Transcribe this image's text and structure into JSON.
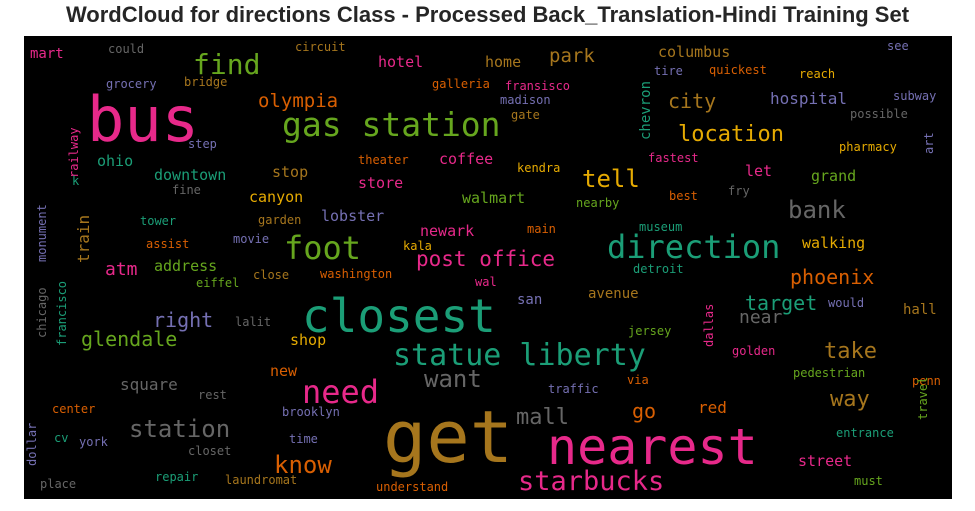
{
  "chart_data": {
    "type": "wordcloud",
    "title": "WordCloud for directions Class - Processed Back_Translation-Hindi Training Set",
    "background": "#000000",
    "palette": [
      "#1b9e77",
      "#d95f02",
      "#7570b3",
      "#e7298a",
      "#66a61e",
      "#e6ab02",
      "#a6761d",
      "#666666"
    ],
    "words": [
      {
        "text": "get",
        "weight": 1.0,
        "color": "#a6761d"
      },
      {
        "text": "nearest",
        "weight": 0.96,
        "color": "#e7298a"
      },
      {
        "text": "closest",
        "weight": 0.91,
        "color": "#1b9e77"
      },
      {
        "text": "bus",
        "weight": 0.89,
        "color": "#e7298a"
      },
      {
        "text": "gas station",
        "weight": 0.6,
        "color": "#66a61e"
      },
      {
        "text": "direction",
        "weight": 0.58,
        "color": "#1b9e77"
      },
      {
        "text": "statue liberty",
        "weight": 0.56,
        "color": "#1b9e77"
      },
      {
        "text": "foot",
        "weight": 0.55,
        "color": "#66a61e"
      },
      {
        "text": "need",
        "weight": 0.52,
        "color": "#e7298a"
      },
      {
        "text": "starbucks",
        "weight": 0.48,
        "color": "#e7298a"
      },
      {
        "text": "find",
        "weight": 0.46,
        "color": "#66a61e"
      },
      {
        "text": "want",
        "weight": 0.44,
        "color": "#666666"
      },
      {
        "text": "bank",
        "weight": 0.44,
        "color": "#666666"
      },
      {
        "text": "station",
        "weight": 0.42,
        "color": "#666666"
      },
      {
        "text": "know",
        "weight": 0.41,
        "color": "#d95f02"
      },
      {
        "text": "tell",
        "weight": 0.4,
        "color": "#e6ab02"
      },
      {
        "text": "location",
        "weight": 0.38,
        "color": "#e6ab02"
      },
      {
        "text": "mall",
        "weight": 0.36,
        "color": "#666666"
      },
      {
        "text": "way",
        "weight": 0.36,
        "color": "#a6761d"
      },
      {
        "text": "take",
        "weight": 0.35,
        "color": "#a6761d"
      },
      {
        "text": "post office",
        "weight": 0.35,
        "color": "#e7298a"
      },
      {
        "text": "target",
        "weight": 0.33,
        "color": "#1b9e77"
      },
      {
        "text": "phoenix",
        "weight": 0.33,
        "color": "#d95f02"
      },
      {
        "text": "city",
        "weight": 0.33,
        "color": "#a6761d"
      },
      {
        "text": "right",
        "weight": 0.32,
        "color": "#7570b3"
      },
      {
        "text": "glendale",
        "weight": 0.32,
        "color": "#66a61e"
      },
      {
        "text": "olympia",
        "weight": 0.32,
        "color": "#d95f02"
      },
      {
        "text": "go",
        "weight": 0.32,
        "color": "#d95f02"
      },
      {
        "text": "park",
        "weight": 0.3,
        "color": "#a6761d"
      },
      {
        "text": "near",
        "weight": 0.3,
        "color": "#666666"
      },
      {
        "text": "atm",
        "weight": 0.28,
        "color": "#e7298a"
      },
      {
        "text": "red",
        "weight": 0.27,
        "color": "#d95f02"
      },
      {
        "text": "hospital",
        "weight": 0.26,
        "color": "#7570b3"
      },
      {
        "text": "columbus",
        "weight": 0.25,
        "color": "#a6761d"
      },
      {
        "text": "square",
        "weight": 0.25,
        "color": "#666666"
      },
      {
        "text": "home",
        "weight": 0.24,
        "color": "#a6761d"
      },
      {
        "text": "hotel",
        "weight": 0.24,
        "color": "#e7298a"
      },
      {
        "text": "coffee",
        "weight": 0.24,
        "color": "#e7298a"
      },
      {
        "text": "walmart",
        "weight": 0.24,
        "color": "#66a61e"
      },
      {
        "text": "street",
        "weight": 0.24,
        "color": "#e7298a"
      },
      {
        "text": "walking",
        "weight": 0.23,
        "color": "#e6ab02"
      },
      {
        "text": "grand",
        "weight": 0.22,
        "color": "#66a61e"
      },
      {
        "text": "newark",
        "weight": 0.22,
        "color": "#e7298a"
      },
      {
        "text": "downtown",
        "weight": 0.23,
        "color": "#1b9e77"
      },
      {
        "text": "canyon",
        "weight": 0.23,
        "color": "#e6ab02"
      },
      {
        "text": "ohio",
        "weight": 0.22,
        "color": "#1b9e77"
      },
      {
        "text": "stop",
        "weight": 0.22,
        "color": "#a6761d"
      },
      {
        "text": "store",
        "weight": 0.22,
        "color": "#e7298a"
      },
      {
        "text": "lobster",
        "weight": 0.22,
        "color": "#7570b3"
      },
      {
        "text": "address",
        "weight": 0.22,
        "color": "#66a61e"
      },
      {
        "text": "shop",
        "weight": 0.21,
        "color": "#e6ab02"
      },
      {
        "text": "avenue",
        "weight": 0.21,
        "color": "#a6761d"
      },
      {
        "text": "san",
        "weight": 0.2,
        "color": "#7570b3"
      },
      {
        "text": "hall",
        "weight": 0.21,
        "color": "#a6761d"
      },
      {
        "text": "let",
        "weight": 0.21,
        "color": "#e7298a"
      },
      {
        "text": "new",
        "weight": 0.21,
        "color": "#d95f02"
      },
      {
        "text": "train",
        "weight": 0.2,
        "color": "#a6761d"
      },
      {
        "text": "chevron",
        "weight": 0.19,
        "color": "#1b9e77"
      },
      {
        "text": "mart",
        "weight": 0.18,
        "color": "#e7298a"
      },
      {
        "text": "could",
        "weight": 0.16,
        "color": "#666666"
      },
      {
        "text": "circuit",
        "weight": 0.15,
        "color": "#a6761d"
      },
      {
        "text": "see",
        "weight": 0.14,
        "color": "#7570b3"
      },
      {
        "text": "grocery",
        "weight": 0.16,
        "color": "#7570b3"
      },
      {
        "text": "bridge",
        "weight": 0.16,
        "color": "#a6761d"
      },
      {
        "text": "galleria",
        "weight": 0.16,
        "color": "#d95f02"
      },
      {
        "text": "fransisco",
        "weight": 0.16,
        "color": "#e7298a"
      },
      {
        "text": "madison",
        "weight": 0.16,
        "color": "#7570b3"
      },
      {
        "text": "gate",
        "weight": 0.15,
        "color": "#a6761d"
      },
      {
        "text": "tire",
        "weight": 0.16,
        "color": "#7570b3"
      },
      {
        "text": "quickest",
        "weight": 0.16,
        "color": "#d95f02"
      },
      {
        "text": "reach",
        "weight": 0.16,
        "color": "#e6ab02"
      },
      {
        "text": "subway",
        "weight": 0.16,
        "color": "#7570b3"
      },
      {
        "text": "possible",
        "weight": 0.16,
        "color": "#666666"
      },
      {
        "text": "step",
        "weight": 0.16,
        "color": "#7570b3"
      },
      {
        "text": "railway",
        "weight": 0.16,
        "color": "#e7298a"
      },
      {
        "text": "k",
        "weight": 0.14,
        "color": "#1b9e77"
      },
      {
        "text": "theater",
        "weight": 0.16,
        "color": "#d95f02"
      },
      {
        "text": "kendra",
        "weight": 0.16,
        "color": "#e6ab02"
      },
      {
        "text": "fastest",
        "weight": 0.16,
        "color": "#e7298a"
      },
      {
        "text": "pharmacy",
        "weight": 0.16,
        "color": "#e6ab02"
      },
      {
        "text": "art",
        "weight": 0.15,
        "color": "#7570b3"
      },
      {
        "text": "fine",
        "weight": 0.15,
        "color": "#666666"
      },
      {
        "text": "best",
        "weight": 0.16,
        "color": "#d95f02"
      },
      {
        "text": "fry",
        "weight": 0.15,
        "color": "#666666"
      },
      {
        "text": "nearby",
        "weight": 0.16,
        "color": "#66a61e"
      },
      {
        "text": "tower",
        "weight": 0.16,
        "color": "#1b9e77"
      },
      {
        "text": "garden",
        "weight": 0.16,
        "color": "#a6761d"
      },
      {
        "text": "main",
        "weight": 0.15,
        "color": "#d95f02"
      },
      {
        "text": "museum",
        "weight": 0.16,
        "color": "#1b9e77"
      },
      {
        "text": "assist",
        "weight": 0.16,
        "color": "#d95f02"
      },
      {
        "text": "movie",
        "weight": 0.15,
        "color": "#7570b3"
      },
      {
        "text": "kala",
        "weight": 0.16,
        "color": "#e6ab02"
      },
      {
        "text": "detroit",
        "weight": 0.16,
        "color": "#1b9e77"
      },
      {
        "text": "monument",
        "weight": 0.16,
        "color": "#7570b3"
      },
      {
        "text": "eiffel",
        "weight": 0.16,
        "color": "#66a61e"
      },
      {
        "text": "close",
        "weight": 0.15,
        "color": "#a6761d"
      },
      {
        "text": "washington",
        "weight": 0.16,
        "color": "#d95f02"
      },
      {
        "text": "wal",
        "weight": 0.15,
        "color": "#e7298a"
      },
      {
        "text": "would",
        "weight": 0.16,
        "color": "#7570b3"
      },
      {
        "text": "lalit",
        "weight": 0.16,
        "color": "#666666"
      },
      {
        "text": "chicago",
        "weight": 0.15,
        "color": "#666666"
      },
      {
        "text": "francisco",
        "weight": 0.15,
        "color": "#1b9e77"
      },
      {
        "text": "jersey",
        "weight": 0.16,
        "color": "#66a61e"
      },
      {
        "text": "dallas",
        "weight": 0.15,
        "color": "#e7298a"
      },
      {
        "text": "golden",
        "weight": 0.16,
        "color": "#e7298a"
      },
      {
        "text": "pedestrian",
        "weight": 0.16,
        "color": "#66a61e"
      },
      {
        "text": "via",
        "weight": 0.15,
        "color": "#d95f02"
      },
      {
        "text": "penn",
        "weight": 0.16,
        "color": "#d95f02"
      },
      {
        "text": "traffic",
        "weight": 0.16,
        "color": "#7570b3"
      },
      {
        "text": "rest",
        "weight": 0.16,
        "color": "#666666"
      },
      {
        "text": "travel",
        "weight": 0.16,
        "color": "#66a61e"
      },
      {
        "text": "center",
        "weight": 0.16,
        "color": "#d95f02"
      },
      {
        "text": "brooklyn",
        "weight": 0.16,
        "color": "#7570b3"
      },
      {
        "text": "entrance",
        "weight": 0.16,
        "color": "#1b9e77"
      },
      {
        "text": "cv",
        "weight": 0.15,
        "color": "#1b9e77"
      },
      {
        "text": "york",
        "weight": 0.16,
        "color": "#7570b3"
      },
      {
        "text": "time",
        "weight": 0.15,
        "color": "#7570b3"
      },
      {
        "text": "dollar",
        "weight": 0.15,
        "color": "#7570b3"
      },
      {
        "text": "closet",
        "weight": 0.15,
        "color": "#666666"
      },
      {
        "text": "repair",
        "weight": 0.16,
        "color": "#1b9e77"
      },
      {
        "text": "laundromat",
        "weight": 0.16,
        "color": "#a6761d"
      },
      {
        "text": "place",
        "weight": 0.16,
        "color": "#666666"
      },
      {
        "text": "understand",
        "weight": 0.16,
        "color": "#d95f02"
      },
      {
        "text": "must",
        "weight": 0.15,
        "color": "#66a61e"
      }
    ]
  }
}
